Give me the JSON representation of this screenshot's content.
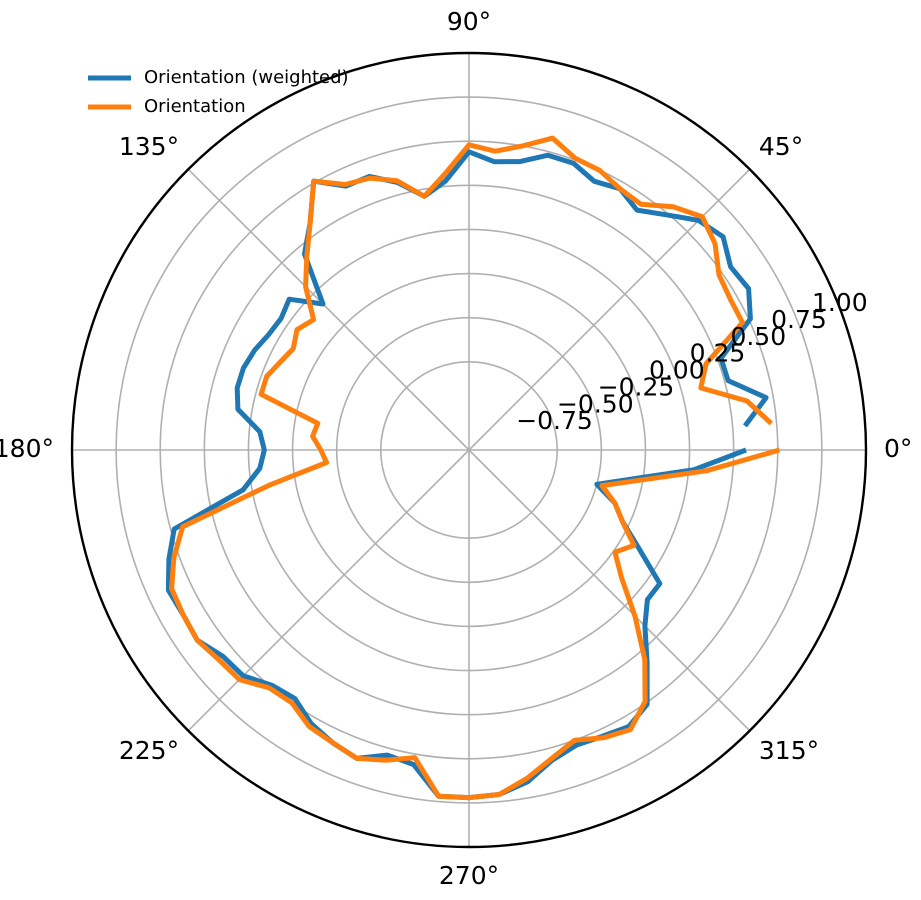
{
  "chart_data": {
    "type": "line",
    "projection": "polar",
    "title": "",
    "rlim": [
      -1.25,
      1.0
    ],
    "grid": true,
    "theta_ticks": [
      {
        "deg": 0,
        "label": "0°"
      },
      {
        "deg": 45,
        "label": "45°"
      },
      {
        "deg": 90,
        "label": "90°"
      },
      {
        "deg": 135,
        "label": "135°"
      },
      {
        "deg": 180,
        "label": "180°"
      },
      {
        "deg": 225,
        "label": "225°"
      },
      {
        "deg": 270,
        "label": "270°"
      },
      {
        "deg": 315,
        "label": "315°"
      }
    ],
    "r_ticks": [
      {
        "value": -0.75,
        "label": "−0.75"
      },
      {
        "value": -0.5,
        "label": "−0.50"
      },
      {
        "value": -0.25,
        "label": "−0.25"
      },
      {
        "value": 0.0,
        "label": "0.00"
      },
      {
        "value": 0.25,
        "label": "0.25"
      },
      {
        "value": 0.5,
        "label": "0.50"
      },
      {
        "value": 0.75,
        "label": "0.75"
      },
      {
        "value": 1.0,
        "label": "1.00"
      }
    ],
    "legend": {
      "placement": "top-left"
    },
    "series": [
      {
        "name": "Orientation (weighted)",
        "color": "#1f77b4",
        "points": [
          [
            5,
            0.32
          ],
          [
            10,
            0.46
          ],
          [
            15,
            0.27
          ],
          [
            20,
            0.27
          ],
          [
            25,
            0.51
          ],
          [
            30,
            0.58
          ],
          [
            35,
            0.56
          ],
          [
            40,
            0.63
          ],
          [
            45,
            0.59
          ],
          [
            50,
            0.49
          ],
          [
            55,
            0.41
          ],
          [
            60,
            0.46
          ],
          [
            65,
            0.43
          ],
          [
            70,
            0.48
          ],
          [
            75,
            0.48
          ],
          [
            80,
            0.41
          ],
          [
            85,
            0.39
          ],
          [
            90,
            0.44
          ],
          [
            95,
            0.28
          ],
          [
            100,
            0.21
          ],
          [
            105,
            0.32
          ],
          [
            110,
            0.4
          ],
          [
            115,
            0.4
          ],
          [
            120,
            0.51
          ],
          [
            125,
            0.32
          ],
          [
            130,
            0.2
          ],
          [
            135,
            -0.08
          ],
          [
            140,
            0.08
          ],
          [
            145,
            0.05
          ],
          [
            150,
            0.06
          ],
          [
            155,
            0.09
          ],
          [
            160,
            0.11
          ],
          [
            165,
            0.11
          ],
          [
            170,
            0.08
          ],
          [
            175,
            -0.06
          ],
          [
            180,
            -0.09
          ],
          [
            185,
            -0.06
          ],
          [
            190,
            0.05
          ],
          [
            195,
            0.48
          ],
          [
            200,
            0.56
          ],
          [
            205,
            0.63
          ],
          [
            210,
            0.62
          ],
          [
            215,
            0.63
          ],
          [
            220,
            0.57
          ],
          [
            225,
            0.56
          ],
          [
            230,
            0.49
          ],
          [
            235,
            0.47
          ],
          [
            240,
            0.54
          ],
          [
            245,
            0.58
          ],
          [
            250,
            0.61
          ],
          [
            255,
            0.54
          ],
          [
            260,
            0.56
          ],
          [
            265,
            0.72
          ],
          [
            270,
            0.72
          ],
          [
            275,
            0.71
          ],
          [
            280,
            0.66
          ],
          [
            285,
            0.57
          ],
          [
            290,
            0.53
          ],
          [
            295,
            0.54
          ],
          [
            300,
            0.56
          ],
          [
            305,
            0.51
          ],
          [
            310,
            0.32
          ],
          [
            315,
            0.16
          ],
          [
            320,
            0.07
          ],
          [
            325,
            0.07
          ],
          [
            330,
            -0.14
          ],
          [
            335,
            -0.29
          ],
          [
            340,
            -0.37
          ],
          [
            345,
            -0.5
          ],
          [
            355,
            0.03
          ],
          [
            360,
            0.32
          ]
        ]
      },
      {
        "name": "Orientation",
        "color": "#ff7f0e",
        "points": [
          [
            5,
            0.47
          ],
          [
            10,
            0.35
          ],
          [
            15,
            0.11
          ],
          [
            20,
            0.18
          ],
          [
            25,
            0.46
          ],
          [
            30,
            0.46
          ],
          [
            35,
            0.48
          ],
          [
            40,
            0.57
          ],
          [
            45,
            0.62
          ],
          [
            50,
            0.55
          ],
          [
            55,
            0.45
          ],
          [
            60,
            0.46
          ],
          [
            65,
            0.5
          ],
          [
            70,
            0.51
          ],
          [
            75,
            0.58
          ],
          [
            80,
            0.5
          ],
          [
            85,
            0.45
          ],
          [
            90,
            0.48
          ],
          [
            95,
            0.32
          ],
          [
            100,
            0.21
          ],
          [
            105,
            0.33
          ],
          [
            110,
            0.39
          ],
          [
            115,
            0.41
          ],
          [
            120,
            0.51
          ],
          [
            125,
            0.32
          ],
          [
            130,
            0.18
          ],
          [
            135,
            0.06
          ],
          [
            140,
            -0.1
          ],
          [
            145,
            -0.06
          ],
          [
            150,
            -0.1
          ],
          [
            155,
            -0.07
          ],
          [
            160,
            -0.03
          ],
          [
            165,
            -0.03
          ],
          [
            170,
            -0.38
          ],
          [
            175,
            -0.36
          ],
          [
            180,
            -0.41
          ],
          [
            185,
            -0.44
          ],
          [
            190,
            -0.1
          ],
          [
            195,
            0.43
          ],
          [
            200,
            0.53
          ],
          [
            205,
            0.61
          ],
          [
            210,
            0.62
          ],
          [
            215,
            0.63
          ],
          [
            220,
            0.6
          ],
          [
            225,
            0.59
          ],
          [
            230,
            0.51
          ],
          [
            235,
            0.5
          ],
          [
            240,
            0.56
          ],
          [
            245,
            0.58
          ],
          [
            250,
            0.61
          ],
          [
            255,
            0.57
          ],
          [
            260,
            0.52
          ],
          [
            265,
            0.72
          ],
          [
            270,
            0.72
          ],
          [
            275,
            0.71
          ],
          [
            280,
            0.64
          ],
          [
            285,
            0.56
          ],
          [
            290,
            0.5
          ],
          [
            295,
            0.55
          ],
          [
            300,
            0.58
          ],
          [
            305,
            0.49
          ],
          [
            310,
            0.3
          ],
          [
            315,
            0.08
          ],
          [
            320,
            -0.12
          ],
          [
            325,
            -0.24
          ],
          [
            330,
            -0.17
          ],
          [
            335,
            -0.29
          ],
          [
            340,
            -0.37
          ],
          [
            345,
            -0.47
          ],
          [
            355,
            0.1
          ],
          [
            360,
            0.51
          ]
        ]
      }
    ]
  }
}
